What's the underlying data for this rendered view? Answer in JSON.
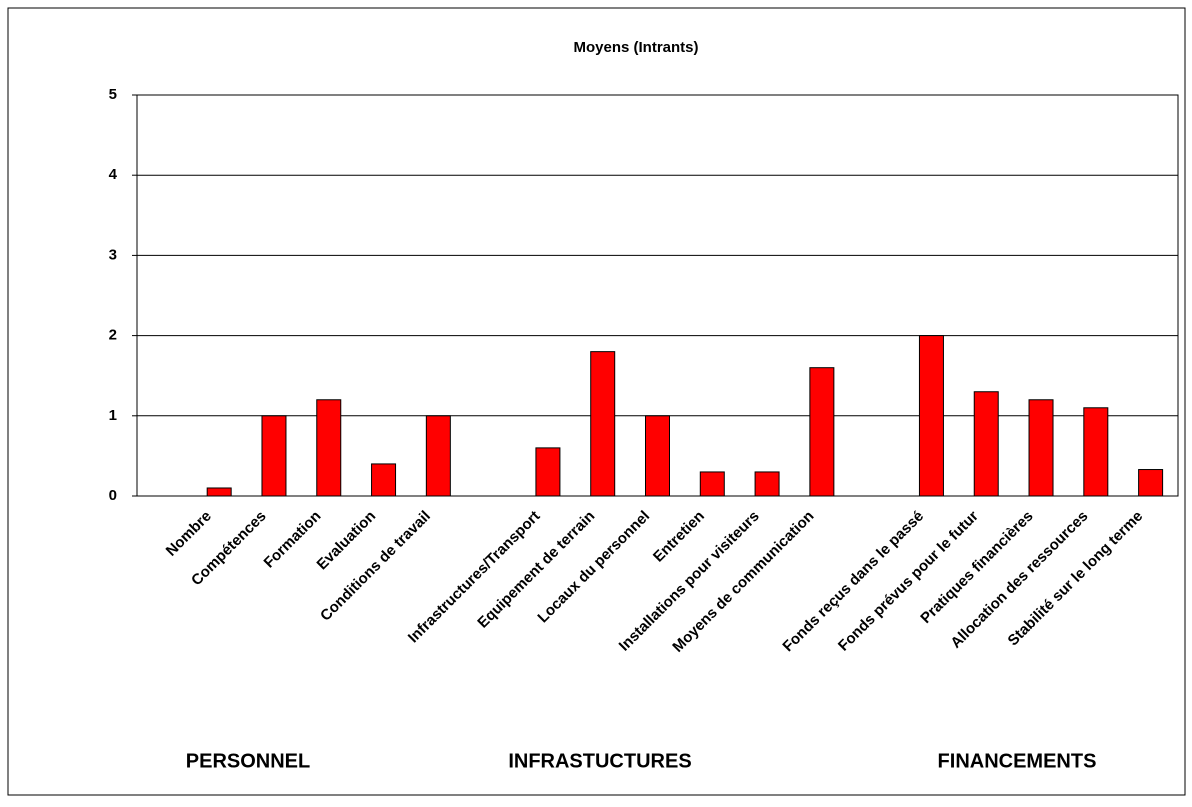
{
  "chart_data": {
    "type": "bar",
    "title": "Moyens (Intrants)",
    "categories": [
      null,
      "Nombre",
      "Compétences",
      "Formation",
      "Evaluation",
      "Conditions de travail",
      null,
      "Infrastructures/Transport",
      "Equipement de terrain",
      "Locaux du personnel",
      "Entretien",
      "Installations pour visiteurs",
      "Moyens de communication",
      null,
      "Fonds reçus dans le passé",
      "Fonds prévus pour le futur",
      "Pratiques financières",
      "Allocation des ressources",
      "Stabilité sur le long terme"
    ],
    "values": [
      null,
      0.1,
      1.0,
      1.2,
      0.4,
      1.0,
      null,
      0.6,
      1.8,
      1.0,
      0.3,
      0.3,
      1.6,
      null,
      2.0,
      1.3,
      1.2,
      1.1,
      0.33
    ],
    "color": "#ff0000",
    "ylim": [
      0,
      5
    ],
    "yticks": [
      0,
      1,
      2,
      3,
      4,
      5
    ],
    "grid": true,
    "annotations": [
      "PERSONNEL",
      "INFRASTUCTURES",
      "FINANCEMENTS"
    ],
    "annotation_color": "#ff0000"
  }
}
